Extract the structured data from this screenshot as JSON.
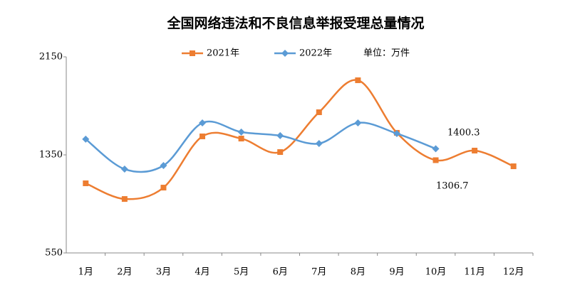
{
  "chart_data": {
    "type": "line",
    "title": "全国网络违法和不良信息举报受理总量情况",
    "unit_note": "单位：万件",
    "categories": [
      "1月",
      "2月",
      "3月",
      "4月",
      "5月",
      "6月",
      "7月",
      "8月",
      "9月",
      "10月",
      "11月",
      "12月"
    ],
    "series": [
      {
        "name": "2021年",
        "color": "#ed7d31",
        "marker": "square",
        "values": [
          1118,
          990,
          1083,
          1501,
          1483,
          1373,
          1698,
          1959,
          1530,
          1306.7,
          1385,
          1257
        ]
      },
      {
        "name": "2022年",
        "color": "#5b9bd5",
        "marker": "diamond",
        "values": [
          1478,
          1234,
          1263,
          1611,
          1536,
          1507,
          1443,
          1611,
          1524,
          1400.3,
          null,
          null
        ]
      }
    ],
    "annotations": [
      "1400.3",
      "1306.7"
    ],
    "ylim": [
      550,
      2150
    ],
    "yticks": [
      550,
      1350,
      2150
    ],
    "smooth": true
  }
}
